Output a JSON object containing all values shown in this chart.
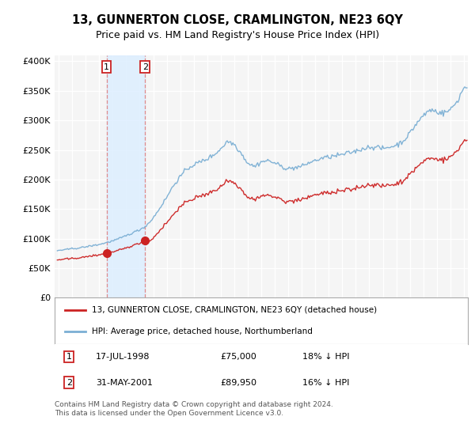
{
  "title": "13, GUNNERTON CLOSE, CRAMLINGTON, NE23 6QY",
  "subtitle": "Price paid vs. HM Land Registry's House Price Index (HPI)",
  "title_fontsize": 10.5,
  "subtitle_fontsize": 9,
  "ylabel_ticks": [
    "£0",
    "£50K",
    "£100K",
    "£150K",
    "£200K",
    "£250K",
    "£300K",
    "£350K",
    "£400K"
  ],
  "ytick_vals": [
    0,
    50000,
    100000,
    150000,
    200000,
    250000,
    300000,
    350000,
    400000
  ],
  "ylim": [
    0,
    410000
  ],
  "xlim_start": 1994.7,
  "xlim_end": 2025.3,
  "hpi_color": "#7bafd4",
  "price_color": "#cc2222",
  "legend_label_price": "13, GUNNERTON CLOSE, CRAMLINGTON, NE23 6QY (detached house)",
  "legend_label_hpi": "HPI: Average price, detached house, Northumberland",
  "transaction1_date": "17-JUL-1998",
  "transaction1_price": 75000,
  "transaction1_pct": "18% ↓ HPI",
  "transaction1_x": 1998.54,
  "transaction2_date": "31-MAY-2001",
  "transaction2_price": 89950,
  "transaction2_pct": "16% ↓ HPI",
  "transaction2_x": 2001.41,
  "footer_text": "Contains HM Land Registry data © Crown copyright and database right 2024.\nThis data is licensed under the Open Government Licence v3.0.",
  "background_color": "#ffffff",
  "plot_bg_color": "#f5f5f5",
  "grid_color": "#ffffff",
  "span_color": "#ddeeff",
  "dashed_color": "#e08080"
}
